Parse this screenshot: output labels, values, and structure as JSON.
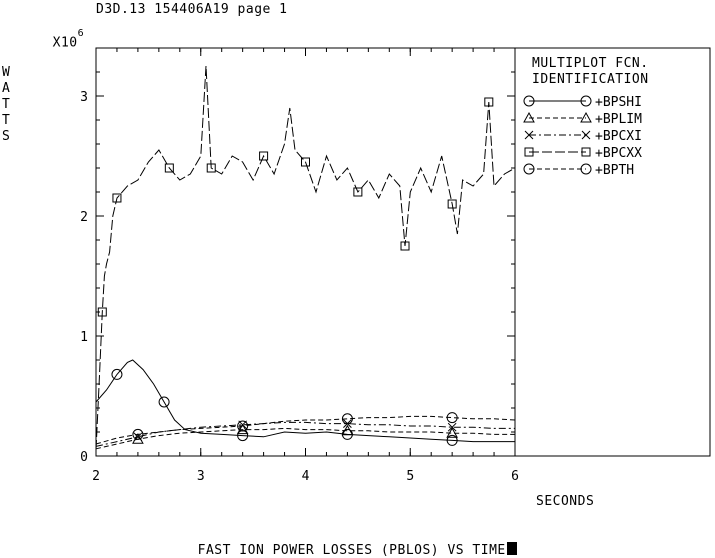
{
  "header": {
    "title": "D3D.13 154406A19 page 1"
  },
  "chart_data": {
    "type": "line",
    "title": "FAST ION POWER LOSSES (PBLOS) VS TIME",
    "multiplier_label": "X10",
    "multiplier_exponent": "6",
    "ylabel": "WATTS",
    "xlabel": "SECONDS",
    "xlim": [
      2,
      6
    ],
    "ylim": [
      0,
      3.4
    ],
    "x_ticks": [
      "2",
      "3",
      "4",
      "5",
      "6"
    ],
    "y_ticks": [
      "0",
      "1",
      "2",
      "3"
    ],
    "legend": {
      "placement": "right",
      "heading_line1": "MULTIPLOT FCN.",
      "heading_line2": "IDENTIFICATION"
    },
    "series": [
      {
        "name": "+BPSHI",
        "marker": "circle",
        "dash": "solid",
        "x": [
          2.0,
          2.1,
          2.2,
          2.3,
          2.35,
          2.45,
          2.55,
          2.65,
          2.75,
          2.85,
          3.0,
          3.2,
          3.4,
          3.6,
          3.8,
          4.0,
          4.2,
          4.4,
          4.6,
          4.8,
          5.0,
          5.2,
          5.4,
          5.6,
          5.8,
          6.0
        ],
        "y": [
          0.45,
          0.55,
          0.68,
          0.78,
          0.8,
          0.72,
          0.6,
          0.45,
          0.3,
          0.22,
          0.19,
          0.18,
          0.17,
          0.16,
          0.2,
          0.19,
          0.2,
          0.18,
          0.17,
          0.16,
          0.15,
          0.14,
          0.13,
          0.12,
          0.12,
          0.12
        ]
      },
      {
        "name": "+BPLIM",
        "marker": "triangle",
        "dash": "dashed",
        "x": [
          2.0,
          2.2,
          2.4,
          2.6,
          2.8,
          3.0,
          3.2,
          3.4,
          3.6,
          3.8,
          4.0,
          4.2,
          4.4,
          4.6,
          4.8,
          5.0,
          5.2,
          5.4,
          5.6,
          5.8,
          6.0
        ],
        "y": [
          0.06,
          0.1,
          0.14,
          0.17,
          0.19,
          0.2,
          0.21,
          0.22,
          0.22,
          0.23,
          0.22,
          0.22,
          0.21,
          0.21,
          0.2,
          0.2,
          0.2,
          0.19,
          0.19,
          0.18,
          0.18
        ]
      },
      {
        "name": "+BPCXI",
        "marker": "cross",
        "dash": "dashdot",
        "x": [
          2.0,
          2.2,
          2.4,
          2.6,
          2.8,
          3.0,
          3.2,
          3.4,
          3.6,
          3.8,
          4.0,
          4.2,
          4.4,
          4.6,
          4.8,
          5.0,
          5.2,
          5.4,
          5.6,
          5.8,
          6.0
        ],
        "y": [
          0.08,
          0.12,
          0.16,
          0.2,
          0.22,
          0.24,
          0.25,
          0.26,
          0.27,
          0.28,
          0.28,
          0.27,
          0.27,
          0.26,
          0.26,
          0.25,
          0.25,
          0.24,
          0.24,
          0.23,
          0.23
        ]
      },
      {
        "name": "+BPCXX",
        "marker": "square",
        "dash": "longdash",
        "x": [
          2.0,
          2.03,
          2.06,
          2.08,
          2.1,
          2.13,
          2.16,
          2.2,
          2.3,
          2.4,
          2.5,
          2.6,
          2.7,
          2.8,
          2.9,
          3.0,
          3.05,
          3.1,
          3.2,
          3.3,
          3.4,
          3.5,
          3.6,
          3.7,
          3.8,
          3.85,
          3.9,
          4.0,
          4.1,
          4.2,
          4.3,
          4.4,
          4.5,
          4.6,
          4.7,
          4.8,
          4.9,
          4.95,
          5.0,
          5.1,
          5.2,
          5.3,
          5.4,
          5.45,
          5.5,
          5.6,
          5.7,
          5.75,
          5.8,
          5.9,
          6.0
        ],
        "y": [
          0.05,
          0.6,
          1.2,
          1.5,
          1.6,
          1.7,
          2.0,
          2.15,
          2.25,
          2.3,
          2.45,
          2.55,
          2.4,
          2.3,
          2.35,
          2.5,
          3.25,
          2.4,
          2.35,
          2.5,
          2.45,
          2.3,
          2.5,
          2.35,
          2.6,
          2.9,
          2.55,
          2.45,
          2.2,
          2.5,
          2.3,
          2.4,
          2.2,
          2.3,
          2.15,
          2.35,
          2.25,
          1.75,
          2.2,
          2.4,
          2.2,
          2.5,
          2.1,
          1.85,
          2.3,
          2.25,
          2.35,
          2.95,
          2.25,
          2.35,
          2.4
        ]
      },
      {
        "name": "+BPTH",
        "marker": "circle",
        "dash": "dashed",
        "x": [
          2.0,
          2.2,
          2.4,
          2.6,
          2.8,
          3.0,
          3.2,
          3.4,
          3.6,
          3.8,
          4.0,
          4.2,
          4.4,
          4.6,
          4.8,
          5.0,
          5.2,
          5.4,
          5.6,
          5.8,
          6.0
        ],
        "y": [
          0.1,
          0.15,
          0.18,
          0.2,
          0.22,
          0.23,
          0.24,
          0.25,
          0.27,
          0.29,
          0.3,
          0.3,
          0.31,
          0.32,
          0.32,
          0.33,
          0.33,
          0.32,
          0.31,
          0.31,
          0.3
        ]
      }
    ]
  }
}
